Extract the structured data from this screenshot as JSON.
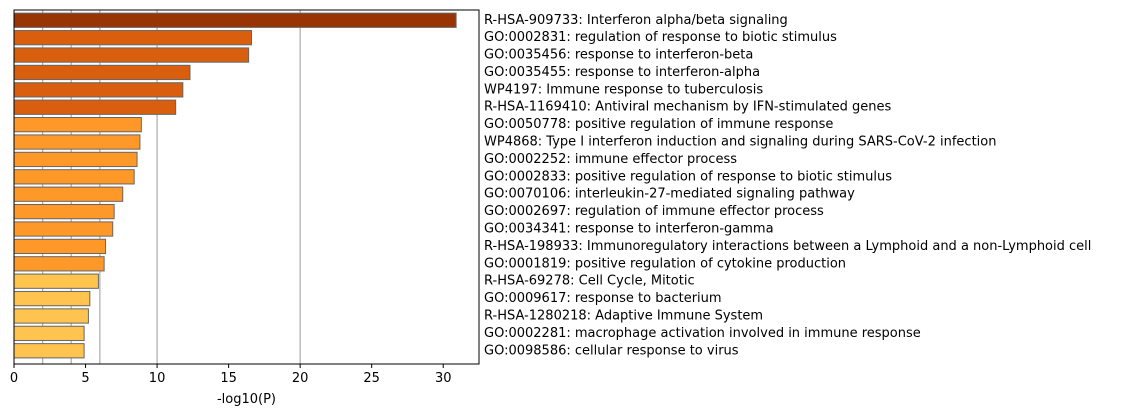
{
  "chart_data": {
    "type": "bar",
    "orientation": "horizontal",
    "title": "",
    "xlabel": "-log10(P)",
    "ylabel": "",
    "xlim": [
      0,
      32.5
    ],
    "xticks": [
      0,
      5,
      10,
      15,
      20,
      25,
      30
    ],
    "gridlines_x": [
      2,
      4,
      6,
      10,
      20
    ],
    "grid": true,
    "legend": "none",
    "bar_edge_color": "#666666",
    "categories": [
      "R-HSA-909733: Interferon alpha/beta signaling",
      "GO:0002831: regulation of response to biotic stimulus",
      "GO:0035456: response to interferon-beta",
      "GO:0035455: response to interferon-alpha",
      "WP4197: Immune response to tuberculosis",
      "R-HSA-1169410: Antiviral mechanism by IFN-stimulated genes",
      "GO:0050778: positive regulation of immune response",
      "WP4868: Type I interferon induction and signaling during SARS-CoV-2 infection",
      "GO:0002252: immune effector process",
      "GO:0002833: positive regulation of response to biotic stimulus",
      "GO:0070106: interleukin-27-mediated signaling pathway",
      "GO:0002697: regulation of immune effector process",
      "GO:0034341: response to interferon-gamma",
      "R-HSA-198933: Immunoregulatory interactions between a Lymphoid and a non-Lymphoid cell",
      "GO:0001819: positive regulation of cytokine production",
      "R-HSA-69278: Cell Cycle, Mitotic",
      "GO:0009617: response to bacterium",
      "R-HSA-1280218: Adaptive Immune System",
      "GO:0002281: macrophage activation involved in immune response",
      "GO:0098586: cellular response to virus"
    ],
    "values": [
      30.9,
      16.6,
      16.4,
      12.3,
      11.8,
      11.3,
      8.9,
      8.8,
      8.6,
      8.4,
      7.6,
      7.0,
      6.9,
      6.4,
      6.3,
      5.9,
      5.3,
      5.2,
      4.9,
      4.9
    ],
    "colors": [
      "#993404",
      "#d95f0e",
      "#d95f0e",
      "#d95f0e",
      "#d95f0e",
      "#d95f0e",
      "#fe9929",
      "#fe9929",
      "#fe9929",
      "#fe9929",
      "#fe9929",
      "#fe9929",
      "#fe9929",
      "#fe9929",
      "#fe9929",
      "#fec44f",
      "#fec44f",
      "#fec44f",
      "#fec44f",
      "#fec44f"
    ]
  }
}
